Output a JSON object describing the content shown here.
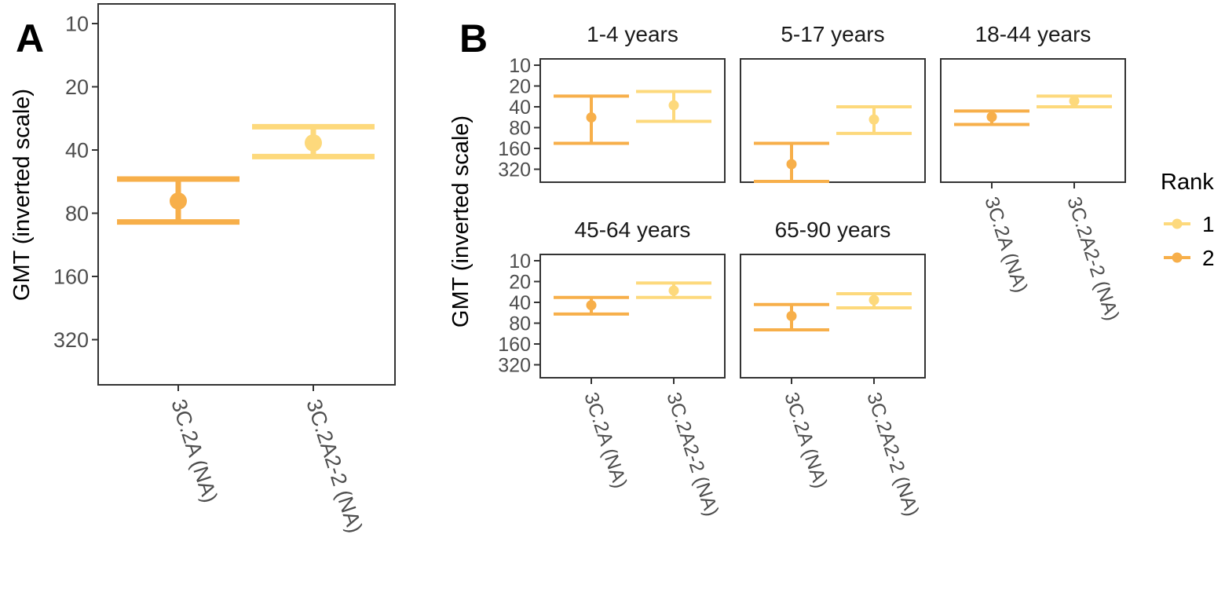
{
  "panel_labels": {
    "a": "A",
    "b": "B"
  },
  "colors": {
    "rank_1": "#FDD97C",
    "rank_2": "#F7AF4A"
  },
  "legend": {
    "title": "Rank",
    "entries": [
      {
        "label": "1",
        "color": "#FDD97C"
      },
      {
        "label": "2",
        "color": "#F7AF4A"
      }
    ]
  },
  "chart_data": [
    {
      "id": "A",
      "type": "errorbar",
      "xlabel": "",
      "ylabel": "GMT (inverted scale)",
      "y_scale": "log2-reversed",
      "y_ticks": [
        10,
        20,
        40,
        80,
        160,
        320
      ],
      "categories": [
        "3C.2A (NA)",
        "3C.2A2-2 (NA)"
      ],
      "points": [
        {
          "category": "3C.2A (NA)",
          "rank": "2",
          "gmt": 70,
          "lower": 55,
          "upper": 88
        },
        {
          "category": "3C.2A2-2 (NA)",
          "rank": "1",
          "gmt": 37,
          "lower": 31,
          "upper": 43
        }
      ]
    },
    {
      "id": "B",
      "type": "errorbar",
      "xlabel": "",
      "ylabel": "GMT (inverted scale)",
      "y_scale": "log2-reversed",
      "y_ticks": [
        10,
        20,
        40,
        80,
        160,
        320
      ],
      "categories": [
        "3C.2A (NA)",
        "3C.2A2-2 (NA)"
      ],
      "facets": [
        {
          "label": "1-4 years",
          "points": [
            {
              "category": "3C.2A (NA)",
              "rank": "2",
              "gmt": 57,
              "lower": 28,
              "upper": 135
            },
            {
              "category": "3C.2A2-2 (NA)",
              "rank": "1",
              "gmt": 38,
              "lower": 24,
              "upper": 65
            }
          ]
        },
        {
          "label": "5-17 years",
          "points": [
            {
              "category": "3C.2A (NA)",
              "rank": "2",
              "gmt": 270,
              "lower": 135,
              "upper": 480
            },
            {
              "category": "3C.2A2-2 (NA)",
              "rank": "1",
              "gmt": 61,
              "lower": 40,
              "upper": 97
            }
          ]
        },
        {
          "label": "18-44 years",
          "points": [
            {
              "category": "3C.2A (NA)",
              "rank": "2",
              "gmt": 56,
              "lower": 46,
              "upper": 72
            },
            {
              "category": "3C.2A2-2 (NA)",
              "rank": "1",
              "gmt": 33,
              "lower": 28,
              "upper": 40
            }
          ]
        },
        {
          "label": "45-64 years",
          "points": [
            {
              "category": "3C.2A (NA)",
              "rank": "2",
              "gmt": 44,
              "lower": 34,
              "upper": 59
            },
            {
              "category": "3C.2A2-2 (NA)",
              "rank": "1",
              "gmt": 27,
              "lower": 21,
              "upper": 34
            }
          ]
        },
        {
          "label": "65-90 years",
          "points": [
            {
              "category": "3C.2A (NA)",
              "rank": "2",
              "gmt": 63,
              "lower": 43,
              "upper": 100
            },
            {
              "category": "3C.2A2-2 (NA)",
              "rank": "1",
              "gmt": 37,
              "lower": 30,
              "upper": 48
            }
          ]
        }
      ]
    }
  ]
}
